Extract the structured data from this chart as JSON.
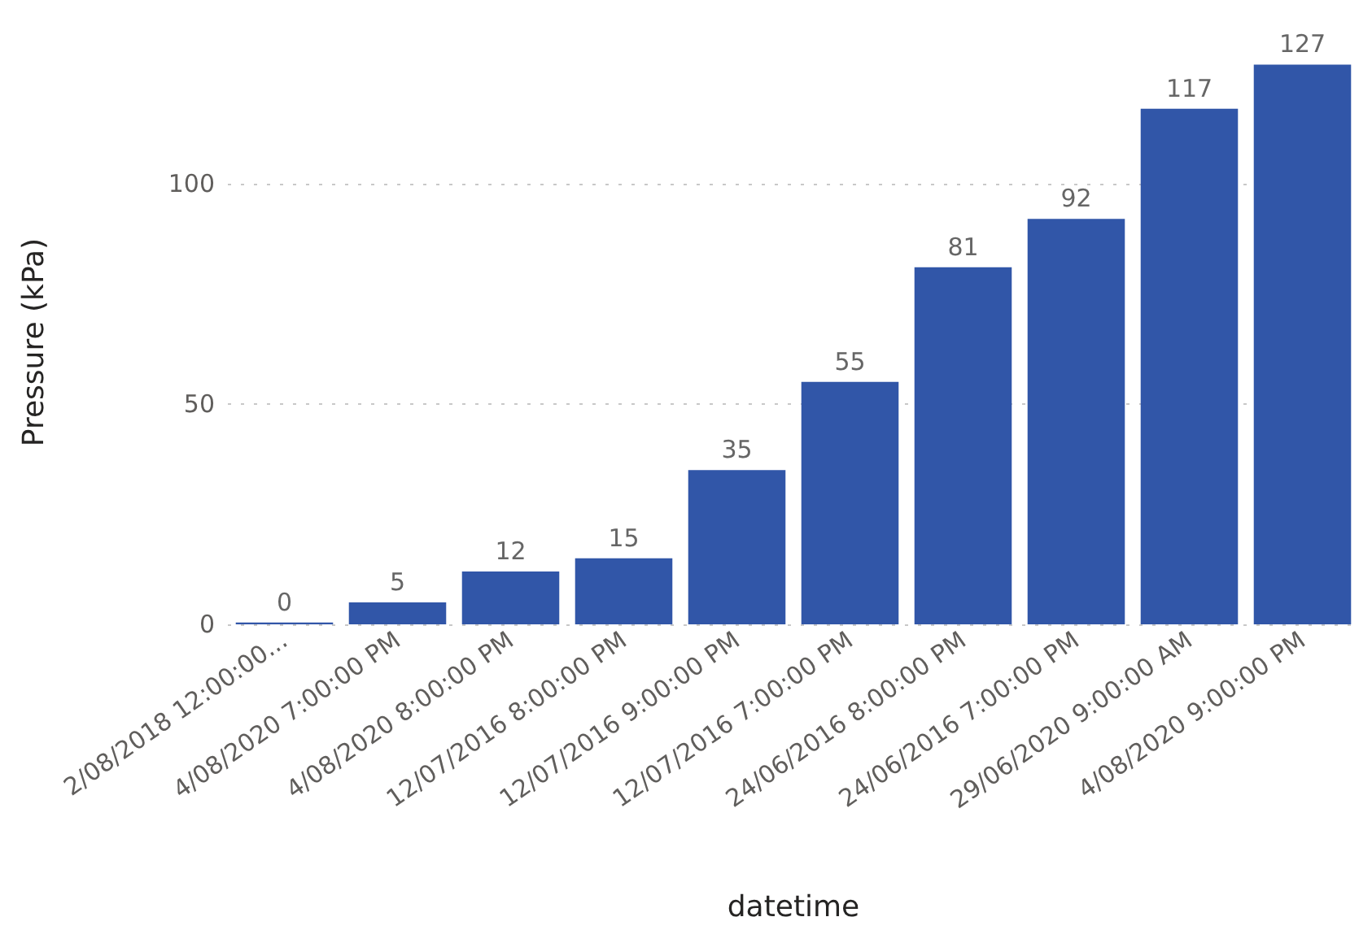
{
  "chart_data": {
    "type": "bar",
    "xlabel": "datetime",
    "ylabel": "Pressure (kPa)",
    "categories": [
      "2/08/2018 12:00:00...",
      "4/08/2020 7:00:00 PM",
      "4/08/2020 8:00:00 PM",
      "12/07/2016 8:00:00 PM",
      "12/07/2016 9:00:00 PM",
      "12/07/2016 7:00:00 PM",
      "24/06/2016 8:00:00 PM",
      "24/06/2016 7:00:00 PM",
      "29/06/2020 9:00:00 AM",
      "4/08/2020 9:00:00 PM"
    ],
    "values": [
      0.4,
      5,
      12,
      15,
      35,
      55,
      81,
      92,
      117,
      127
    ],
    "value_labels": [
      "0",
      "5",
      "12",
      "15",
      "35",
      "55",
      "81",
      "92",
      "117",
      "127"
    ],
    "color": "#3156a8",
    "ylim": [
      0,
      128
    ],
    "yticks": [
      0,
      50,
      100
    ],
    "grid": "y"
  }
}
